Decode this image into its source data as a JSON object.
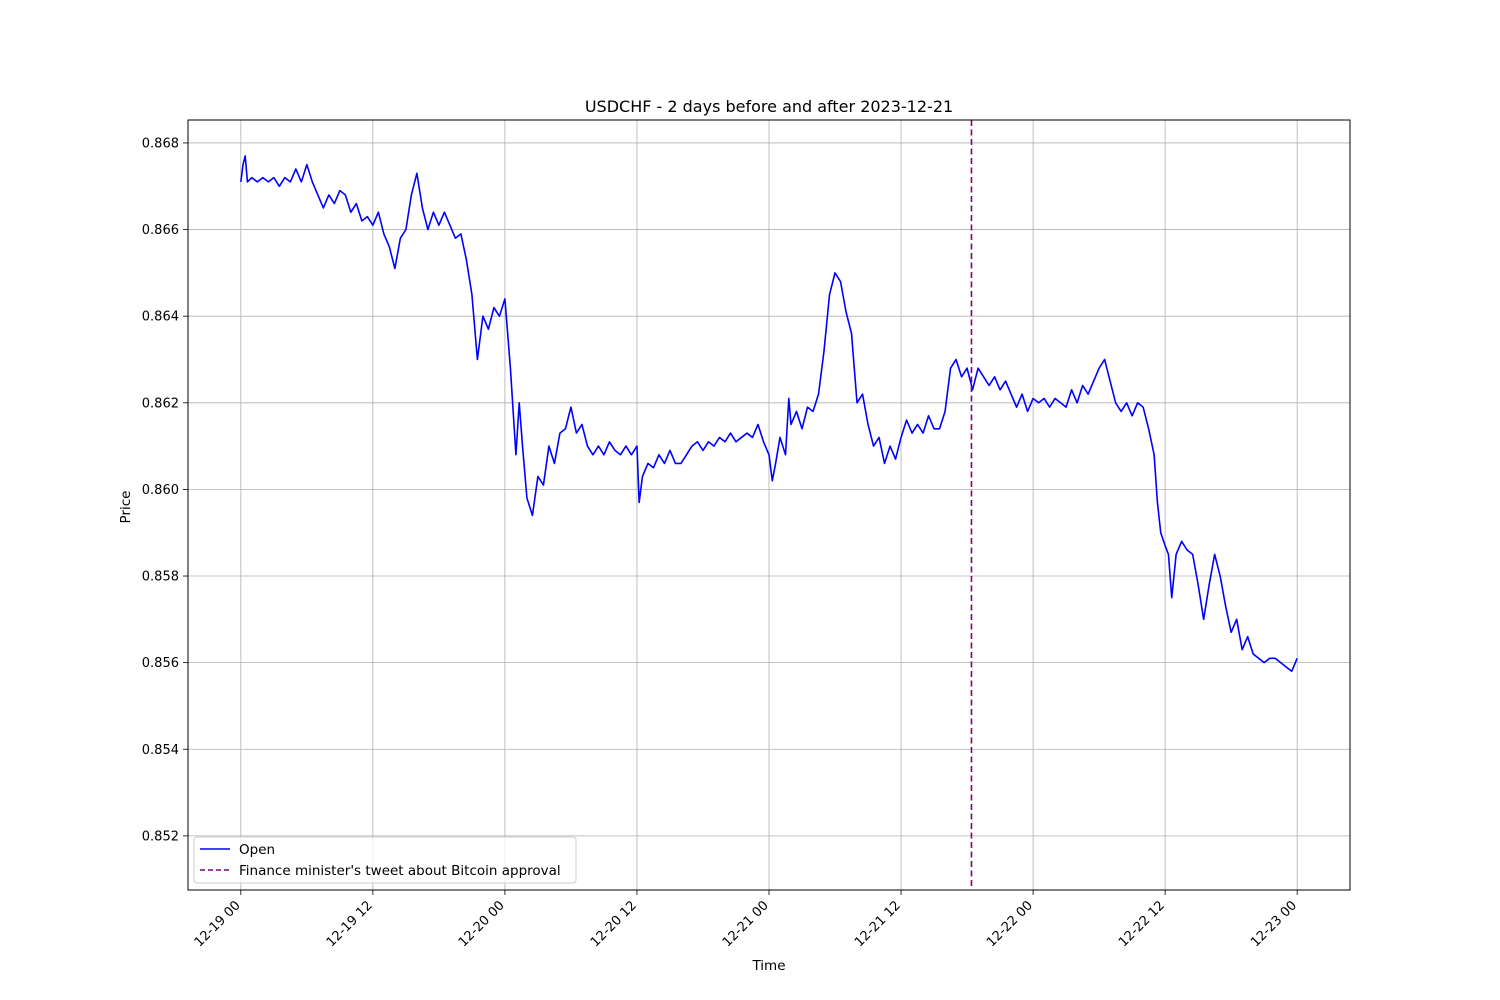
{
  "chart_data": {
    "type": "line",
    "title": "USDCHF - 2 days before and after 2023-12-21",
    "xlabel": "Time",
    "ylabel": "Price",
    "x_unit": "hours",
    "xlim": [
      -4.8,
      100.8
    ],
    "ylim": [
      0.85075,
      0.86853
    ],
    "grid": true,
    "legend_placement": "lower-left",
    "x_ticks": [
      {
        "value": 0,
        "label": "12-19 00"
      },
      {
        "value": 12,
        "label": "12-19 12"
      },
      {
        "value": 24,
        "label": "12-20 00"
      },
      {
        "value": 36,
        "label": "12-20 12"
      },
      {
        "value": 48,
        "label": "12-21 00"
      },
      {
        "value": 60,
        "label": "12-21 12"
      },
      {
        "value": 72,
        "label": "12-22 00"
      },
      {
        "value": 84,
        "label": "12-22 12"
      },
      {
        "value": 96,
        "label": "12-23 00"
      }
    ],
    "y_ticks": [
      {
        "value": 0.852,
        "label": "0.852"
      },
      {
        "value": 0.854,
        "label": "0.854"
      },
      {
        "value": 0.856,
        "label": "0.856"
      },
      {
        "value": 0.858,
        "label": "0.858"
      },
      {
        "value": 0.86,
        "label": "0.860"
      },
      {
        "value": 0.862,
        "label": "0.862"
      },
      {
        "value": 0.864,
        "label": "0.864"
      },
      {
        "value": 0.866,
        "label": "0.866"
      },
      {
        "value": 0.868,
        "label": "0.868"
      }
    ],
    "series": [
      {
        "name": "Open",
        "color": "#0000ff",
        "points": [
          [
            0.0,
            0.8671
          ],
          [
            0.2,
            0.8675
          ],
          [
            0.4,
            0.8677
          ],
          [
            0.6,
            0.8671
          ],
          [
            1.0,
            0.8672
          ],
          [
            1.5,
            0.8671
          ],
          [
            2.0,
            0.8672
          ],
          [
            2.5,
            0.8671
          ],
          [
            3.0,
            0.8672
          ],
          [
            3.5,
            0.867
          ],
          [
            4.0,
            0.8672
          ],
          [
            4.5,
            0.8671
          ],
          [
            5.0,
            0.8674
          ],
          [
            5.5,
            0.8671
          ],
          [
            6.0,
            0.8675
          ],
          [
            6.5,
            0.8671
          ],
          [
            7.0,
            0.8668
          ],
          [
            7.5,
            0.8665
          ],
          [
            8.0,
            0.8668
          ],
          [
            8.5,
            0.8666
          ],
          [
            9.0,
            0.8669
          ],
          [
            9.5,
            0.8668
          ],
          [
            10.0,
            0.8664
          ],
          [
            10.5,
            0.8666
          ],
          [
            11.0,
            0.8662
          ],
          [
            11.5,
            0.8663
          ],
          [
            12.0,
            0.8661
          ],
          [
            12.5,
            0.8664
          ],
          [
            13.0,
            0.8659
          ],
          [
            13.5,
            0.8656
          ],
          [
            14.0,
            0.8651
          ],
          [
            14.5,
            0.8658
          ],
          [
            15.0,
            0.866
          ],
          [
            15.5,
            0.8668
          ],
          [
            16.0,
            0.8673
          ],
          [
            16.5,
            0.8665
          ],
          [
            17.0,
            0.866
          ],
          [
            17.5,
            0.8664
          ],
          [
            18.0,
            0.8661
          ],
          [
            18.5,
            0.8664
          ],
          [
            19.0,
            0.8661
          ],
          [
            19.5,
            0.8658
          ],
          [
            20.0,
            0.8659
          ],
          [
            20.5,
            0.8653
          ],
          [
            21.0,
            0.8645
          ],
          [
            21.5,
            0.863
          ],
          [
            22.0,
            0.864
          ],
          [
            22.5,
            0.8637
          ],
          [
            23.0,
            0.8642
          ],
          [
            23.5,
            0.864
          ],
          [
            24.0,
            0.8644
          ],
          [
            24.5,
            0.8628
          ],
          [
            25.0,
            0.8608
          ],
          [
            25.3,
            0.862
          ],
          [
            25.6,
            0.861
          ],
          [
            26.0,
            0.8598
          ],
          [
            26.5,
            0.8594
          ],
          [
            27.0,
            0.8603
          ],
          [
            27.5,
            0.8601
          ],
          [
            28.0,
            0.861
          ],
          [
            28.5,
            0.8606
          ],
          [
            29.0,
            0.8613
          ],
          [
            29.5,
            0.8614
          ],
          [
            30.0,
            0.8619
          ],
          [
            30.5,
            0.8613
          ],
          [
            31.0,
            0.8615
          ],
          [
            31.5,
            0.861
          ],
          [
            32.0,
            0.8608
          ],
          [
            32.5,
            0.861
          ],
          [
            33.0,
            0.8608
          ],
          [
            33.5,
            0.8611
          ],
          [
            34.0,
            0.8609
          ],
          [
            34.5,
            0.8608
          ],
          [
            35.0,
            0.861
          ],
          [
            35.5,
            0.8608
          ],
          [
            36.0,
            0.861
          ],
          [
            36.2,
            0.8597
          ],
          [
            36.5,
            0.8603
          ],
          [
            37.0,
            0.8606
          ],
          [
            37.5,
            0.8605
          ],
          [
            38.0,
            0.8608
          ],
          [
            38.5,
            0.8606
          ],
          [
            39.0,
            0.8609
          ],
          [
            39.5,
            0.8606
          ],
          [
            40.0,
            0.8606
          ],
          [
            40.5,
            0.8608
          ],
          [
            41.0,
            0.861
          ],
          [
            41.5,
            0.8611
          ],
          [
            42.0,
            0.8609
          ],
          [
            42.5,
            0.8611
          ],
          [
            43.0,
            0.861
          ],
          [
            43.5,
            0.8612
          ],
          [
            44.0,
            0.8611
          ],
          [
            44.5,
            0.8613
          ],
          [
            45.0,
            0.8611
          ],
          [
            45.5,
            0.8612
          ],
          [
            46.0,
            0.8613
          ],
          [
            46.5,
            0.8612
          ],
          [
            47.0,
            0.8615
          ],
          [
            47.5,
            0.8611
          ],
          [
            48.0,
            0.8608
          ],
          [
            48.3,
            0.8602
          ],
          [
            48.6,
            0.8606
          ],
          [
            49.0,
            0.8612
          ],
          [
            49.5,
            0.8608
          ],
          [
            49.8,
            0.8621
          ],
          [
            50.0,
            0.8615
          ],
          [
            50.5,
            0.8618
          ],
          [
            51.0,
            0.8614
          ],
          [
            51.5,
            0.8619
          ],
          [
            52.0,
            0.8618
          ],
          [
            52.5,
            0.8622
          ],
          [
            53.0,
            0.8632
          ],
          [
            53.5,
            0.8645
          ],
          [
            54.0,
            0.865
          ],
          [
            54.5,
            0.8648
          ],
          [
            55.0,
            0.8641
          ],
          [
            55.5,
            0.8636
          ],
          [
            56.0,
            0.862
          ],
          [
            56.5,
            0.8622
          ],
          [
            57.0,
            0.8615
          ],
          [
            57.5,
            0.861
          ],
          [
            58.0,
            0.8612
          ],
          [
            58.5,
            0.8606
          ],
          [
            59.0,
            0.861
          ],
          [
            59.5,
            0.8607
          ],
          [
            60.0,
            0.8612
          ],
          [
            60.5,
            0.8616
          ],
          [
            61.0,
            0.8613
          ],
          [
            61.5,
            0.8615
          ],
          [
            62.0,
            0.8613
          ],
          [
            62.5,
            0.8617
          ],
          [
            63.0,
            0.8614
          ],
          [
            63.5,
            0.8614
          ],
          [
            64.0,
            0.8618
          ],
          [
            64.5,
            0.8628
          ],
          [
            65.0,
            0.863
          ],
          [
            65.5,
            0.8626
          ],
          [
            66.0,
            0.8628
          ],
          [
            66.5,
            0.8623
          ],
          [
            67.0,
            0.8628
          ],
          [
            67.5,
            0.8626
          ],
          [
            68.0,
            0.8624
          ],
          [
            68.5,
            0.8626
          ],
          [
            69.0,
            0.8623
          ],
          [
            69.5,
            0.8625
          ],
          [
            70.0,
            0.8622
          ],
          [
            70.5,
            0.8619
          ],
          [
            71.0,
            0.8622
          ],
          [
            71.5,
            0.8618
          ],
          [
            72.0,
            0.8621
          ],
          [
            72.5,
            0.862
          ],
          [
            73.0,
            0.8621
          ],
          [
            73.5,
            0.8619
          ],
          [
            74.0,
            0.8621
          ],
          [
            74.5,
            0.862
          ],
          [
            75.0,
            0.8619
          ],
          [
            75.5,
            0.8623
          ],
          [
            76.0,
            0.862
          ],
          [
            76.5,
            0.8624
          ],
          [
            77.0,
            0.8622
          ],
          [
            77.5,
            0.8625
          ],
          [
            78.0,
            0.8628
          ],
          [
            78.5,
            0.863
          ],
          [
            79.0,
            0.8625
          ],
          [
            79.5,
            0.862
          ],
          [
            80.0,
            0.8618
          ],
          [
            80.5,
            0.862
          ],
          [
            81.0,
            0.8617
          ],
          [
            81.5,
            0.862
          ],
          [
            82.0,
            0.8619
          ],
          [
            82.5,
            0.8614
          ],
          [
            83.0,
            0.8608
          ],
          [
            83.3,
            0.8597
          ],
          [
            83.6,
            0.859
          ],
          [
            84.0,
            0.8587
          ],
          [
            84.3,
            0.8585
          ],
          [
            84.6,
            0.8575
          ],
          [
            85.0,
            0.8585
          ],
          [
            85.5,
            0.8588
          ],
          [
            86.0,
            0.8586
          ],
          [
            86.5,
            0.8585
          ],
          [
            87.0,
            0.8578
          ],
          [
            87.5,
            0.857
          ],
          [
            88.0,
            0.8578
          ],
          [
            88.5,
            0.8585
          ],
          [
            89.0,
            0.858
          ],
          [
            89.5,
            0.8573
          ],
          [
            90.0,
            0.8567
          ],
          [
            90.5,
            0.857
          ],
          [
            91.0,
            0.8563
          ],
          [
            91.5,
            0.8566
          ],
          [
            92.0,
            0.8562
          ],
          [
            92.5,
            0.8561
          ],
          [
            93.0,
            0.856
          ],
          [
            93.5,
            0.8561
          ],
          [
            94.0,
            0.8561
          ],
          [
            94.5,
            0.856
          ],
          [
            95.0,
            0.8559
          ],
          [
            95.5,
            0.8558
          ],
          [
            96.0,
            0.8561
          ]
        ]
      },
      {
        "name": "Finance minister's tweet about Bitcoin approval",
        "color": "#800080",
        "style": "dashed",
        "x": 66.4
      }
    ]
  }
}
